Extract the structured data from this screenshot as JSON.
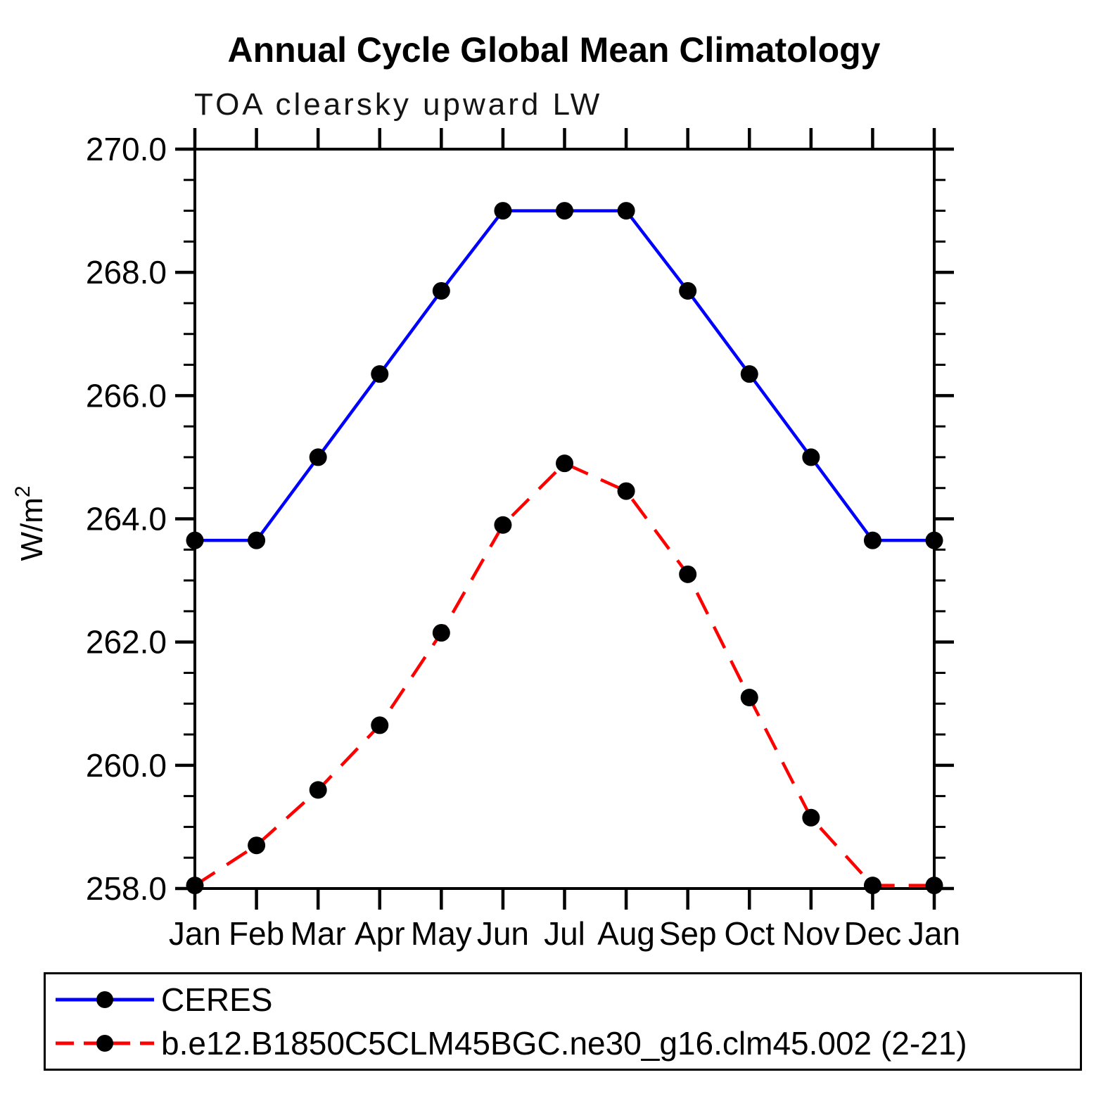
{
  "title": "Annual Cycle Global Mean Climatology",
  "subtitle": "TOA clearsky upward LW",
  "chart_data": {
    "type": "line",
    "categories": [
      "Jan",
      "Feb",
      "Mar",
      "Apr",
      "May",
      "Jun",
      "Jul",
      "Aug",
      "Sep",
      "Oct",
      "Nov",
      "Dec",
      "Jan"
    ],
    "ylabel": "W/m²",
    "ylim": [
      258.0,
      270.0
    ],
    "ytick_major_step": 2.0,
    "ytick_minor_step": 0.5,
    "ytick_labels": [
      "258.0",
      "260.0",
      "262.0",
      "264.0",
      "266.0",
      "268.0",
      "270.0"
    ],
    "grid": "off",
    "legend_position": "bottom",
    "series": [
      {
        "name": "CERES",
        "color": "#0000ff",
        "line_style": "solid",
        "marker": "black-dot",
        "values": [
          263.65,
          263.65,
          265.0,
          266.35,
          267.7,
          269.0,
          269.0,
          269.0,
          267.7,
          266.35,
          265.0,
          263.65,
          263.65
        ]
      },
      {
        "name": "b.e12.B1850C5CLM45BGC.ne30_g16.clm45.002 (2-21)",
        "color": "#ff0000",
        "line_style": "dashed",
        "marker": "black-dot",
        "values": [
          258.05,
          258.7,
          259.6,
          260.65,
          262.15,
          263.9,
          264.9,
          264.45,
          263.1,
          261.1,
          259.15,
          258.05,
          258.05
        ]
      }
    ]
  },
  "colors": {
    "axis": "#000000",
    "marker": "#000000",
    "background": "#ffffff"
  }
}
